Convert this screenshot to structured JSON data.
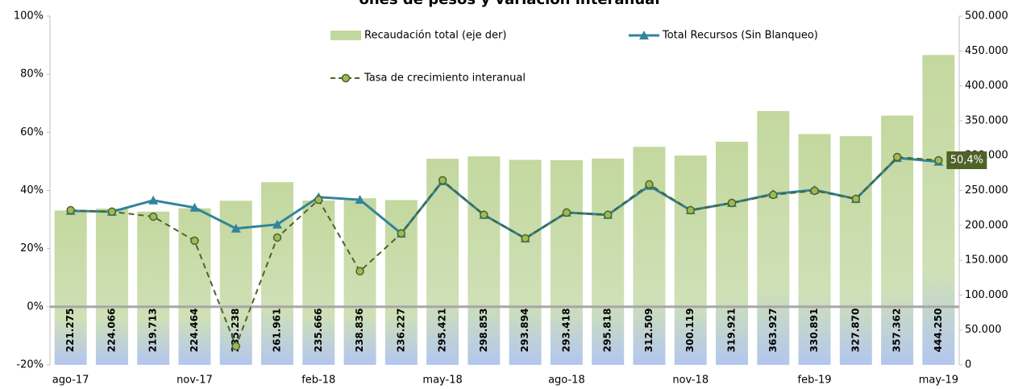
{
  "chart_data": {
    "type": "combo",
    "title": "ones de pesos y variación interanual",
    "categories": [
      "ago-17",
      null,
      null,
      "nov-17",
      null,
      null,
      "feb-18",
      null,
      null,
      "may-18",
      null,
      null,
      "ago-18",
      null,
      null,
      "nov-18",
      null,
      null,
      "feb-19",
      null,
      null,
      "may-19"
    ],
    "series": [
      {
        "name": "Recaudación total (eje der)",
        "type": "bar",
        "axis": "y2",
        "color": "#c3d89e",
        "values": [
          221275,
          224066,
          219713,
          224464,
          235238,
          261961,
          235666,
          238836,
          236227,
          295421,
          298853,
          293894,
          293418,
          295818,
          312509,
          300119,
          319921,
          363927,
          330891,
          327870,
          357362,
          444250
        ],
        "value_labels": [
          "221.275",
          "224.066",
          "219.713",
          "224.464",
          "235.238",
          "261.961",
          "235.666",
          "238.836",
          "236.227",
          "295.421",
          "298.853",
          "293.894",
          "293.418",
          "295.818",
          "312.509",
          "300.119",
          "319.921",
          "363.927",
          "330.891",
          "327.870",
          "357.362",
          "444.250"
        ]
      },
      {
        "name": "Total Recursos (Sin Blanqueo)",
        "type": "line",
        "color": "#31849b",
        "marker": "triangle",
        "line_style": "solid",
        "values": [
          33.0,
          32.7,
          36.6,
          34.1,
          26.9,
          28.3,
          37.7,
          36.8,
          25.2,
          43.2,
          31.6,
          23.5,
          32.4,
          31.6,
          41.6,
          33.2,
          35.7,
          38.8,
          40.2,
          37.1,
          51.2,
          49.9
        ]
      },
      {
        "name": "Tasa de crecimiento interanual",
        "type": "line",
        "color": "#4f6228",
        "marker": "circle",
        "line_style": "dashed",
        "values": [
          33.2,
          32.7,
          31.0,
          22.7,
          -13.6,
          23.8,
          36.8,
          12.2,
          25.2,
          43.5,
          31.6,
          23.5,
          32.4,
          31.6,
          42.1,
          33.2,
          35.7,
          38.5,
          39.9,
          37.1,
          51.5,
          50.4
        ],
        "value_labels": [
          null,
          null,
          null,
          null,
          null,
          null,
          null,
          null,
          null,
          null,
          null,
          null,
          null,
          null,
          null,
          null,
          null,
          null,
          null,
          null,
          null,
          "50,4%"
        ]
      }
    ],
    "ylim": [
      -20,
      100
    ],
    "yticks": [
      {
        "value": -20,
        "label": "-20%"
      },
      {
        "value": 0,
        "label": "0%"
      },
      {
        "value": 20,
        "label": "20%"
      },
      {
        "value": 40,
        "label": "40%"
      },
      {
        "value": 60,
        "label": "60%"
      },
      {
        "value": 80,
        "label": "80%"
      },
      {
        "value": 100,
        "label": "100%"
      }
    ],
    "y2lim": [
      0,
      500000
    ],
    "y2ticks": [
      0,
      {
        "value": 50000,
        "label": "50.000"
      },
      {
        "value": 100000,
        "label": "100.000"
      },
      {
        "value": 150000,
        "label": "150.000"
      },
      {
        "value": 200000,
        "label": "200.000"
      },
      {
        "value": 250000,
        "label": "250.000"
      },
      {
        "value": 300000,
        "label": "300.000"
      },
      {
        "value": 350000,
        "label": "350.000"
      },
      {
        "value": 400000,
        "label": "400.000"
      },
      {
        "value": 450000,
        "label": "450.000"
      },
      {
        "value": 500000,
        "label": "500.000"
      }
    ],
    "grid": false
  }
}
